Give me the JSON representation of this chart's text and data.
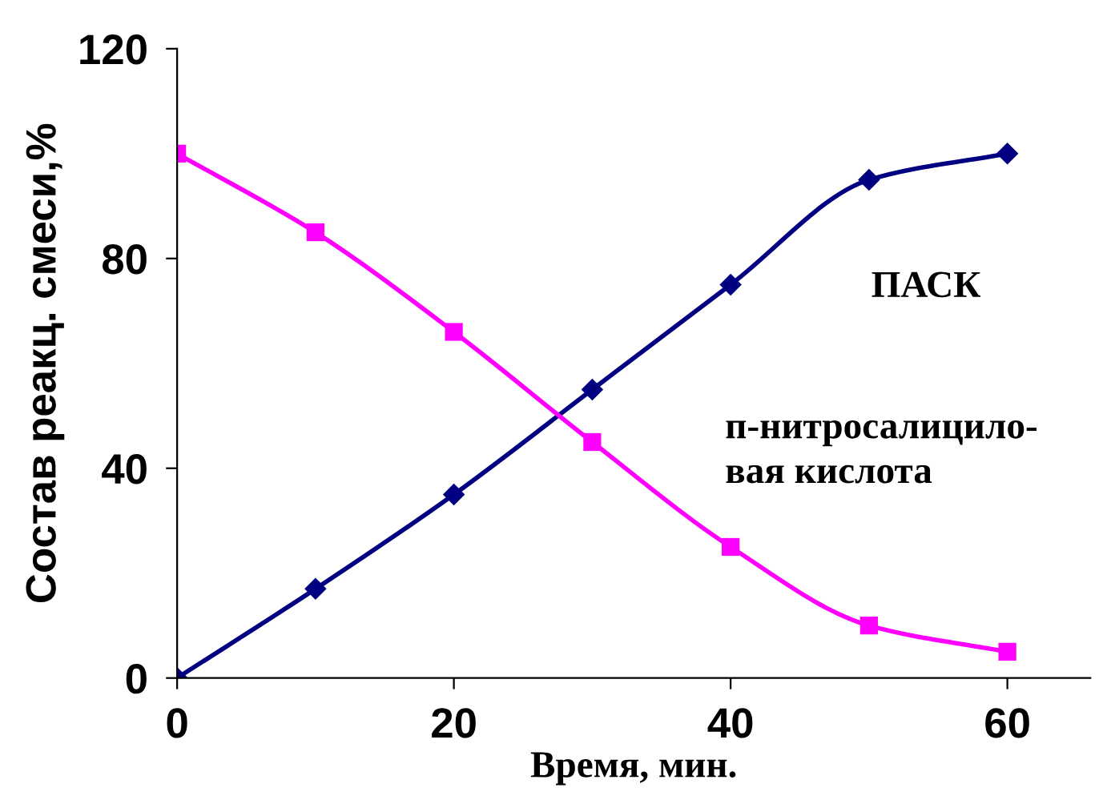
{
  "chart_data": {
    "type": "line",
    "xlabel": "Время, мин.",
    "ylabel": "Состав реакц. смеси,%",
    "x": [
      0,
      10,
      20,
      30,
      40,
      50,
      60
    ],
    "series": [
      {
        "name": "ПАСК",
        "color": "#000080",
        "marker": "diamond",
        "values": [
          0,
          17,
          35,
          55,
          75,
          95,
          100
        ]
      },
      {
        "name": "п-нитросалицило-\nвая кислота",
        "color": "#ff00ff",
        "marker": "square",
        "values": [
          100,
          85,
          66,
          45,
          25,
          10,
          5
        ]
      }
    ],
    "xlim": [
      0,
      66
    ],
    "ylim": [
      0,
      120
    ],
    "xticks": [
      0,
      20,
      40,
      60
    ],
    "yticks": [
      0,
      40,
      80,
      120
    ],
    "grid": false,
    "legend": false,
    "line_style": "solid"
  }
}
